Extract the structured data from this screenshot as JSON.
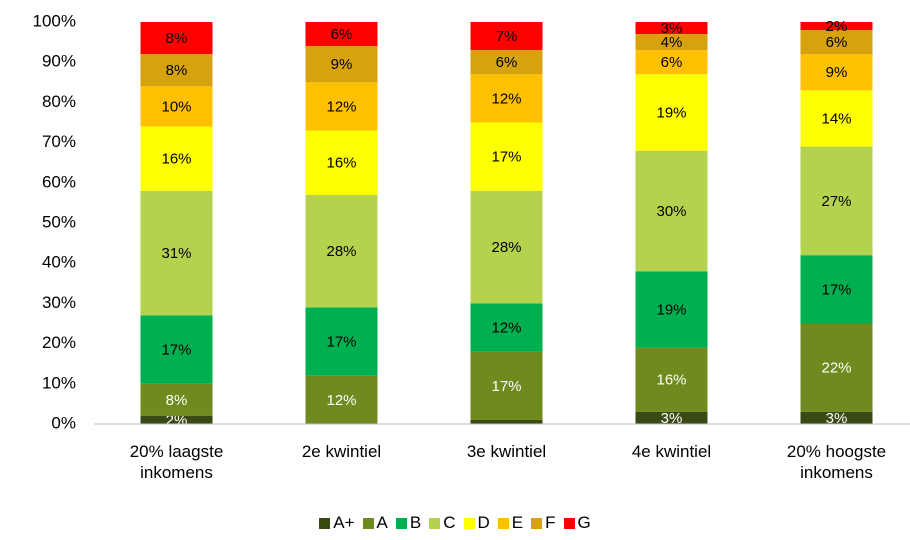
{
  "chart_data": {
    "type": "stacked_bar",
    "categories": [
      "20% laagste inkomens",
      "2e kwintiel",
      "3e kwintiel",
      "4e kwintiel",
      "20% hoogste inkomens"
    ],
    "ylim": [
      0,
      100
    ],
    "yticks": [
      {
        "value": 0,
        "label": "0%"
      },
      {
        "value": 10,
        "label": "10%"
      },
      {
        "value": 20,
        "label": "20%"
      },
      {
        "value": 30,
        "label": "30%"
      },
      {
        "value": 40,
        "label": "40%"
      },
      {
        "value": 50,
        "label": "50%"
      },
      {
        "value": 60,
        "label": "60%"
      },
      {
        "value": 70,
        "label": "70%"
      },
      {
        "value": 80,
        "label": "80%"
      },
      {
        "value": 90,
        "label": "90%"
      },
      {
        "value": 100,
        "label": "100%"
      }
    ],
    "grid": false,
    "legend": "bottom",
    "series": [
      {
        "name": "A+",
        "color": "#3a4a14",
        "label_color": "#ffffff",
        "values": [
          2,
          0,
          1,
          3,
          3
        ],
        "value_labels": [
          "2%",
          null,
          null,
          "3%",
          "3%"
        ]
      },
      {
        "name": "A",
        "color": "#6f8a1e",
        "label_color": "#ffffff",
        "values": [
          8,
          12,
          17,
          16,
          22
        ],
        "value_labels": [
          "8%",
          "12%",
          "17%",
          "16%",
          "22%"
        ]
      },
      {
        "name": "B",
        "color": "#00b050",
        "label_color": "#000000",
        "values": [
          17,
          17,
          12,
          19,
          17
        ],
        "value_labels": [
          "17%",
          "17%",
          "12%",
          "19%",
          "17%"
        ]
      },
      {
        "name": "C",
        "color": "#b4d24e",
        "label_color": "#000000",
        "values": [
          31,
          28,
          28,
          30,
          27
        ],
        "value_labels": [
          "31%",
          "28%",
          "28%",
          "30%",
          "27%"
        ]
      },
      {
        "name": "D",
        "color": "#ffff00",
        "label_color": "#000000",
        "values": [
          16,
          16,
          17,
          19,
          14
        ],
        "value_labels": [
          "16%",
          "16%",
          "17%",
          "19%",
          "14%"
        ]
      },
      {
        "name": "E",
        "color": "#ffc000",
        "label_color": "#000000",
        "values": [
          10,
          12,
          12,
          6,
          9
        ],
        "value_labels": [
          "10%",
          "12%",
          "12%",
          "6%",
          "9%"
        ]
      },
      {
        "name": "F",
        "color": "#d6a20e",
        "label_color": "#000000",
        "values": [
          8,
          9,
          6,
          4,
          6
        ],
        "value_labels": [
          "8%",
          "9%",
          "6%",
          "4%",
          "6%"
        ]
      },
      {
        "name": "G",
        "color": "#ff0000",
        "label_color": "#000000",
        "values": [
          8,
          6,
          7,
          3,
          2
        ],
        "value_labels": [
          "8%",
          "6%",
          "7%",
          "3%",
          "2%"
        ]
      }
    ]
  }
}
